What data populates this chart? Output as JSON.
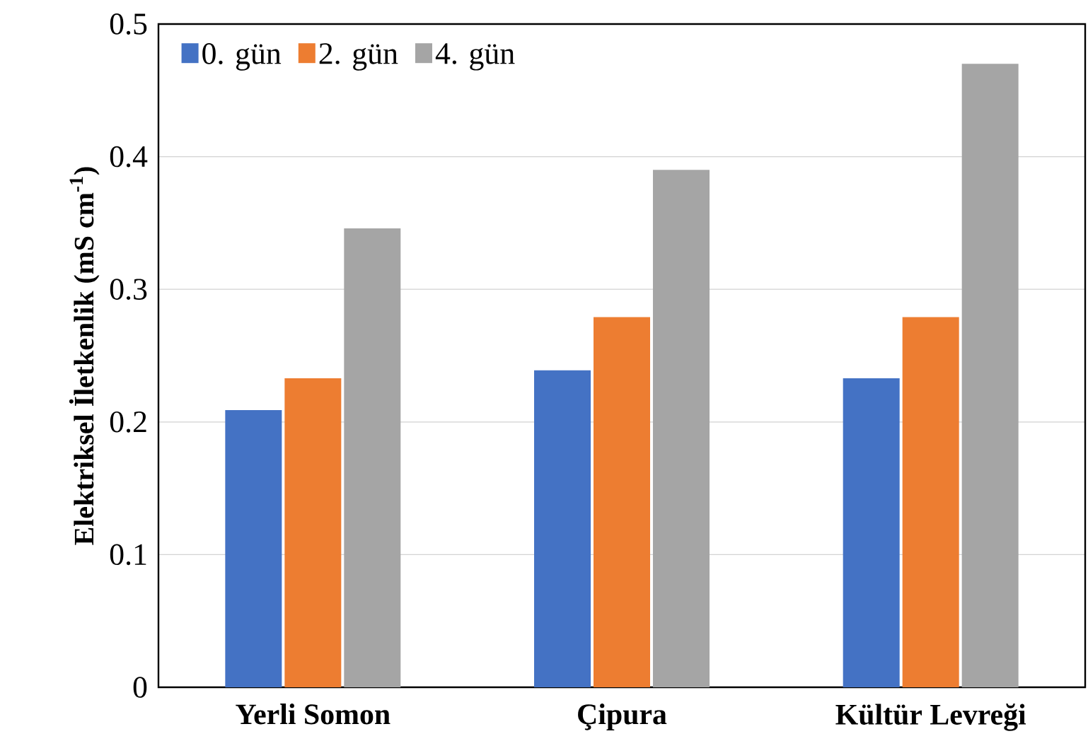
{
  "chart_data": {
    "type": "bar",
    "ylabel": "Elektriksel İletkenlik (mS cm$^{-1}$)",
    "categories": [
      "Yerli Somon",
      "Çipura",
      "Kültür Levreği"
    ],
    "series": [
      {
        "name": "0. gün",
        "color": "#4472c4",
        "values": [
          0.209,
          0.239,
          0.233
        ]
      },
      {
        "name": "2. gün",
        "color": "#ed7d31",
        "values": [
          0.233,
          0.279,
          0.279
        ]
      },
      {
        "name": "4. gün",
        "color": "#a5a5a5",
        "values": [
          0.346,
          0.39,
          0.47
        ]
      }
    ],
    "ylim": [
      0,
      0.5
    ],
    "yticks": [
      0,
      0.1,
      0.2,
      0.3,
      0.4,
      0.5
    ],
    "grid": "y",
    "legend": "top left"
  }
}
